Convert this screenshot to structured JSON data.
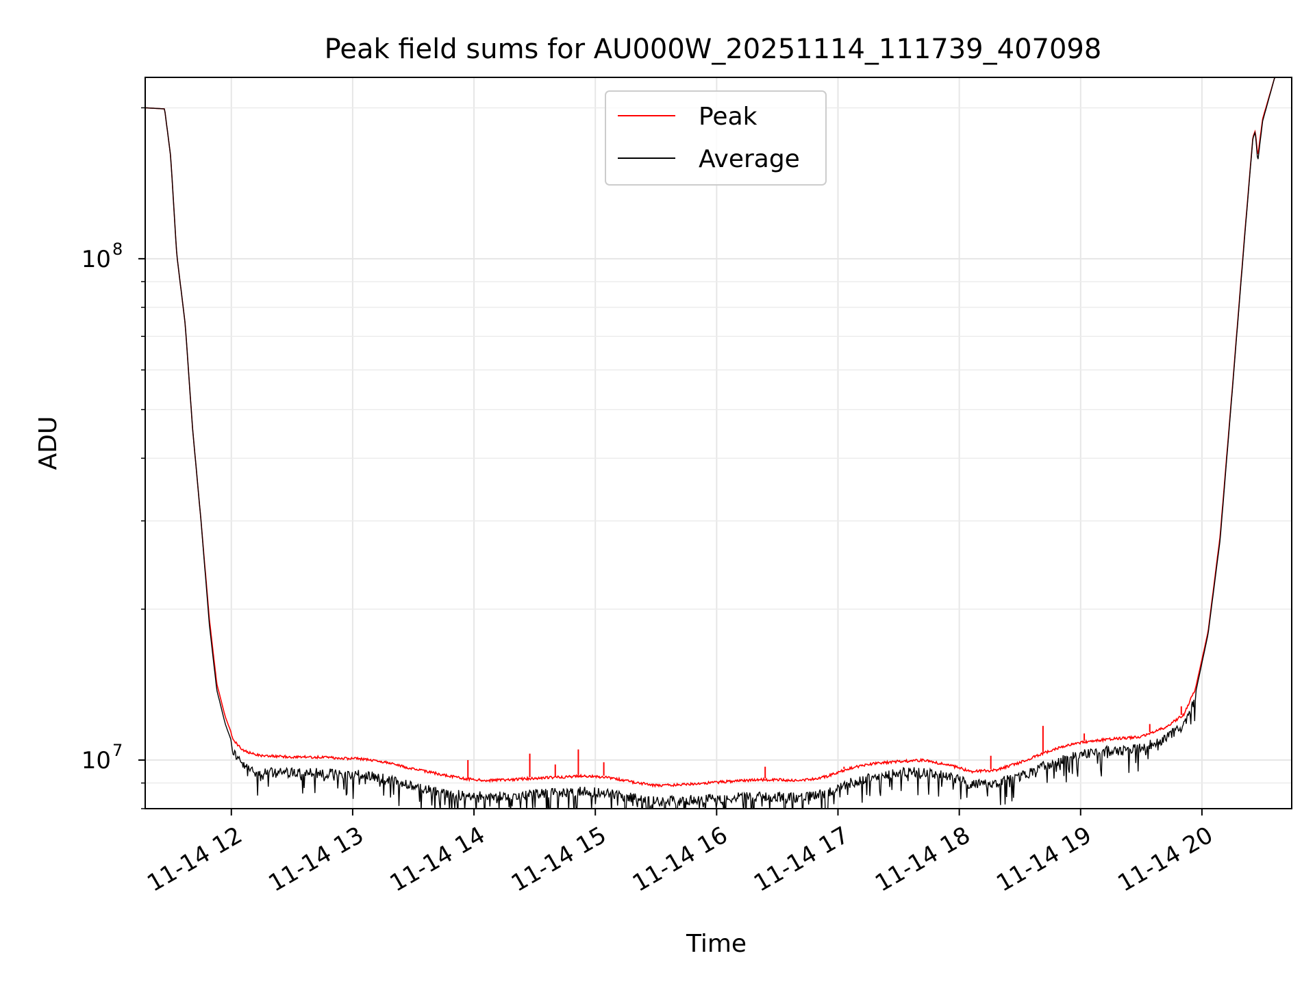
{
  "chart_data": {
    "type": "line",
    "title": "Peak field sums for AU000W_20251114_111739_407098",
    "xlabel": "Time",
    "ylabel": "ADU",
    "yscale": "log",
    "xlim": [
      11.29,
      20.74
    ],
    "ylim": [
      8000000,
      230000000
    ],
    "grid": true,
    "x_ticks": [
      {
        "value": 12,
        "label": "11-14 12"
      },
      {
        "value": 13,
        "label": "11-14 13"
      },
      {
        "value": 14,
        "label": "11-14 14"
      },
      {
        "value": 15,
        "label": "11-14 15"
      },
      {
        "value": 16,
        "label": "11-14 16"
      },
      {
        "value": 17,
        "label": "11-14 17"
      },
      {
        "value": 18,
        "label": "11-14 18"
      },
      {
        "value": 19,
        "label": "11-14 19"
      },
      {
        "value": 20,
        "label": "11-14 20"
      }
    ],
    "y_major_ticks": [
      {
        "value": 10000000,
        "base": "10",
        "exp": "7"
      },
      {
        "value": 100000000,
        "base": "10",
        "exp": "8"
      }
    ],
    "y_minor_ticks": [
      8000000,
      9000000,
      20000000,
      30000000,
      40000000,
      50000000,
      60000000,
      70000000,
      80000000,
      90000000,
      200000000
    ],
    "legend": {
      "position": "top-center",
      "entries": [
        "Peak",
        "Average"
      ]
    },
    "x_units": "hour of day (2025-11-14)",
    "series": [
      {
        "name": "Peak",
        "color": "#ff0000",
        "x": [
          11.29,
          11.45,
          11.5,
          11.55,
          11.62,
          11.68,
          11.75,
          11.82,
          11.88,
          11.95,
          12.02,
          12.1,
          12.2,
          12.35,
          12.5,
          12.7,
          12.9,
          13.1,
          13.3,
          13.5,
          13.7,
          13.9,
          14.1,
          14.3,
          14.5,
          14.7,
          14.9,
          15.1,
          15.3,
          15.5,
          15.7,
          15.9,
          16.1,
          16.3,
          16.5,
          16.7,
          16.9,
          17.1,
          17.3,
          17.5,
          17.7,
          17.9,
          18.1,
          18.3,
          18.5,
          18.7,
          18.9,
          19.1,
          19.3,
          19.5,
          19.7,
          19.85,
          19.95,
          20.05,
          20.15,
          20.25,
          20.35,
          20.42,
          20.44,
          20.46,
          20.5,
          20.6,
          20.74
        ],
        "values": [
          200000000,
          199000000,
          160000000,
          102000000,
          74000000,
          46000000,
          30000000,
          19000000,
          14200000,
          12200000,
          11000000,
          10500000,
          10300000,
          10250000,
          10200000,
          10200000,
          10150000,
          10100000,
          9950000,
          9650000,
          9450000,
          9250000,
          9150000,
          9200000,
          9250000,
          9300000,
          9350000,
          9300000,
          9100000,
          8950000,
          8980000,
          9050000,
          9120000,
          9180000,
          9200000,
          9150000,
          9320000,
          9700000,
          9900000,
          10000000,
          10050000,
          9850000,
          9550000,
          9600000,
          9950000,
          10400000,
          10800000,
          11000000,
          11100000,
          11200000,
          11700000,
          12400000,
          14000000,
          18000000,
          28000000,
          55000000,
          110000000,
          175000000,
          180000000,
          160000000,
          190000000,
          230000000,
          230000000
        ],
        "spikes": [
          {
            "x": 13.95,
            "value": 10000000
          },
          {
            "x": 14.46,
            "value": 10300000
          },
          {
            "x": 14.67,
            "value": 9800000
          },
          {
            "x": 14.86,
            "value": 10500000
          },
          {
            "x": 15.07,
            "value": 9900000
          },
          {
            "x": 16.4,
            "value": 9700000
          },
          {
            "x": 17.05,
            "value": 9700000
          },
          {
            "x": 18.26,
            "value": 10200000
          },
          {
            "x": 18.69,
            "value": 11700000
          },
          {
            "x": 19.03,
            "value": 11300000
          },
          {
            "x": 19.57,
            "value": 11800000
          },
          {
            "x": 19.83,
            "value": 12800000
          }
        ]
      },
      {
        "name": "Average",
        "color": "#000000",
        "x": [
          11.29,
          11.45,
          11.5,
          11.55,
          11.62,
          11.68,
          11.75,
          11.82,
          11.88,
          11.95,
          12.02,
          12.1,
          12.2,
          12.35,
          12.5,
          12.7,
          12.9,
          13.1,
          13.3,
          13.5,
          13.7,
          13.9,
          14.1,
          14.3,
          14.5,
          14.7,
          14.9,
          15.1,
          15.3,
          15.5,
          15.7,
          15.9,
          16.1,
          16.3,
          16.5,
          16.7,
          16.9,
          17.1,
          17.3,
          17.5,
          17.7,
          17.9,
          18.1,
          18.3,
          18.5,
          18.7,
          18.9,
          19.1,
          19.3,
          19.5,
          19.7,
          19.85,
          19.95,
          20.05,
          20.15,
          20.25,
          20.35,
          20.42,
          20.44,
          20.46,
          20.5,
          20.6,
          20.74
        ],
        "values": [
          200000000,
          199000000,
          160000000,
          102000000,
          74000000,
          46000000,
          30000000,
          18500000,
          13800000,
          11800000,
          10600000,
          9950000,
          9700000,
          9650000,
          9650000,
          9650000,
          9600000,
          9550000,
          9350000,
          9050000,
          8850000,
          8700000,
          8650000,
          8700000,
          8750000,
          8800000,
          8850000,
          8800000,
          8600000,
          8450000,
          8500000,
          8550000,
          8600000,
          8650000,
          8650000,
          8600000,
          8800000,
          9200000,
          9500000,
          9650000,
          9700000,
          9500000,
          9150000,
          9200000,
          9500000,
          9950000,
          10350000,
          10600000,
          10700000,
          10800000,
          11300000,
          12000000,
          13700000,
          17800000,
          27500000,
          54500000,
          109000000,
          174000000,
          179000000,
          156000000,
          188000000,
          230000000,
          230000000
        ],
        "noise_range": [
          12.0,
          19.95
        ]
      }
    ]
  }
}
